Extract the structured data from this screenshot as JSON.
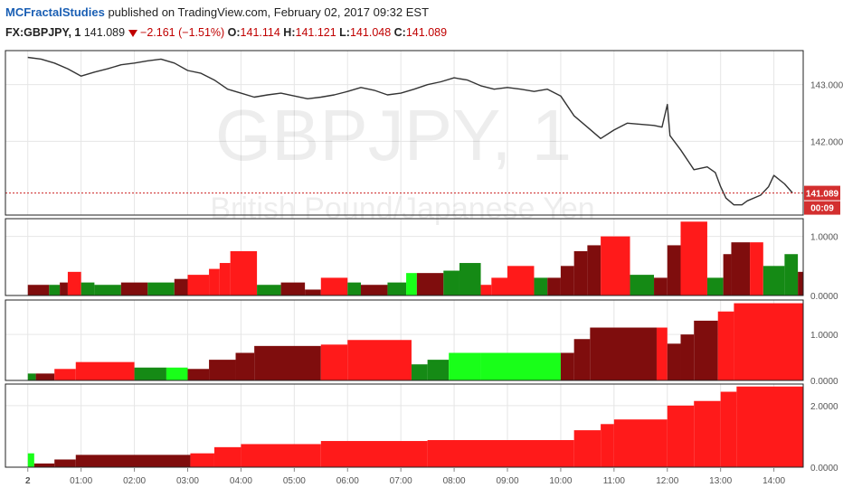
{
  "header": {
    "author": "MCFractalStudies",
    "published_text": "published on TradingView.com, February 02, 2017 09:32 EST",
    "symbol": "FX:GBPJPY, 1",
    "last": "141.089",
    "change": "−2.161 (−1.51%)",
    "o_label": "O:",
    "o_value": "141.114",
    "h_label": "H:",
    "h_value": "141.121",
    "l_label": "L:",
    "l_value": "141.048",
    "c_label": "C:",
    "c_value": "141.089"
  },
  "watermark": {
    "symbol": "GBPJPY, 1",
    "name": "British Pound/Japanese Yen"
  },
  "colors": {
    "red": "#ff1a1a",
    "dark_red": "#7f0d0d",
    "green": "#158a15",
    "light_green": "#19ff19",
    "grid": "#e6e6e6",
    "price_line": "#cc2222",
    "axis_text": "#555555"
  },
  "chart_data": [
    {
      "type": "line",
      "name": "price",
      "x_unit": "hours since midnight (session 2)",
      "x": [
        0,
        0.25,
        0.5,
        0.75,
        1.0,
        1.25,
        1.5,
        1.75,
        2.0,
        2.25,
        2.5,
        2.75,
        3.0,
        3.25,
        3.5,
        3.75,
        4.0,
        4.25,
        4.5,
        4.75,
        5.0,
        5.25,
        5.5,
        5.75,
        6.0,
        6.25,
        6.5,
        6.75,
        7.0,
        7.25,
        7.5,
        7.75,
        8.0,
        8.25,
        8.5,
        8.75,
        9.0,
        9.25,
        9.5,
        9.75,
        10.0,
        10.25,
        10.5,
        10.75,
        11.0,
        11.25,
        11.5,
        11.75,
        11.9,
        12.0,
        12.05,
        12.25,
        12.5,
        12.75,
        12.9,
        13.0,
        13.1,
        13.25,
        13.4,
        13.5,
        13.75,
        13.9,
        14.0,
        14.2,
        14.35
      ],
      "values": [
        143.48,
        143.45,
        143.38,
        143.28,
        143.15,
        143.22,
        143.28,
        143.35,
        143.38,
        143.42,
        143.45,
        143.38,
        143.25,
        143.2,
        143.08,
        142.92,
        142.85,
        142.78,
        142.82,
        142.85,
        142.8,
        142.75,
        142.78,
        142.82,
        142.88,
        142.95,
        142.9,
        142.82,
        142.85,
        142.92,
        143.0,
        143.05,
        143.12,
        143.08,
        142.98,
        142.92,
        142.95,
        142.92,
        142.88,
        142.92,
        142.8,
        142.45,
        142.25,
        142.05,
        142.2,
        142.32,
        142.3,
        142.28,
        142.25,
        142.65,
        142.1,
        141.85,
        141.5,
        141.55,
        141.45,
        141.2,
        141.0,
        140.88,
        140.88,
        140.95,
        141.05,
        141.2,
        141.4,
        141.25,
        141.09
      ],
      "last_value": 141.089,
      "last_label": "141.089",
      "countdown": "00:09",
      "ylim": [
        140.7,
        143.6
      ],
      "yticks": [
        142.0,
        143.0
      ],
      "ytick_labels": [
        "142.000",
        "143.000"
      ]
    },
    {
      "type": "bar",
      "name": "indicator pane 1",
      "ylim": [
        0,
        1.3
      ],
      "yticks": [
        0,
        1
      ],
      "ytick_labels": [
        "0.0000",
        "1.0000"
      ],
      "blocks": [
        {
          "x0": 0,
          "x1": 0.4,
          "v": 0.18,
          "c": "dark_red"
        },
        {
          "x0": 0.4,
          "x1": 0.6,
          "v": 0.18,
          "c": "green"
        },
        {
          "x0": 0.6,
          "x1": 0.75,
          "v": 0.22,
          "c": "dark_red"
        },
        {
          "x0": 0.75,
          "x1": 1.0,
          "v": 0.4,
          "c": "red"
        },
        {
          "x0": 1.0,
          "x1": 1.25,
          "v": 0.22,
          "c": "green"
        },
        {
          "x0": 1.25,
          "x1": 1.75,
          "v": 0.18,
          "c": "green"
        },
        {
          "x0": 1.75,
          "x1": 2.25,
          "v": 0.22,
          "c": "dark_red"
        },
        {
          "x0": 2.25,
          "x1": 2.75,
          "v": 0.22,
          "c": "green"
        },
        {
          "x0": 2.75,
          "x1": 3.0,
          "v": 0.28,
          "c": "dark_red"
        },
        {
          "x0": 3.0,
          "x1": 3.4,
          "v": 0.35,
          "c": "red"
        },
        {
          "x0": 3.4,
          "x1": 3.6,
          "v": 0.45,
          "c": "red"
        },
        {
          "x0": 3.6,
          "x1": 3.8,
          "v": 0.55,
          "c": "red"
        },
        {
          "x0": 3.8,
          "x1": 4.3,
          "v": 0.75,
          "c": "red"
        },
        {
          "x0": 4.3,
          "x1": 4.75,
          "v": 0.18,
          "c": "green"
        },
        {
          "x0": 4.75,
          "x1": 5.2,
          "v": 0.22,
          "c": "dark_red"
        },
        {
          "x0": 5.2,
          "x1": 5.5,
          "v": 0.1,
          "c": "dark_red"
        },
        {
          "x0": 5.5,
          "x1": 6.0,
          "v": 0.3,
          "c": "red"
        },
        {
          "x0": 6.0,
          "x1": 6.25,
          "v": 0.22,
          "c": "green"
        },
        {
          "x0": 6.25,
          "x1": 6.75,
          "v": 0.18,
          "c": "dark_red"
        },
        {
          "x0": 6.75,
          "x1": 7.1,
          "v": 0.22,
          "c": "green"
        },
        {
          "x0": 7.1,
          "x1": 7.3,
          "v": 0.38,
          "c": "light_green"
        },
        {
          "x0": 7.3,
          "x1": 7.8,
          "v": 0.38,
          "c": "dark_red"
        },
        {
          "x0": 7.8,
          "x1": 8.1,
          "v": 0.42,
          "c": "green"
        },
        {
          "x0": 8.1,
          "x1": 8.5,
          "v": 0.55,
          "c": "green"
        },
        {
          "x0": 8.5,
          "x1": 8.7,
          "v": 0.18,
          "c": "red"
        },
        {
          "x0": 8.7,
          "x1": 9.0,
          "v": 0.3,
          "c": "red"
        },
        {
          "x0": 9.0,
          "x1": 9.5,
          "v": 0.5,
          "c": "red"
        },
        {
          "x0": 9.5,
          "x1": 9.75,
          "v": 0.3,
          "c": "green"
        },
        {
          "x0": 9.75,
          "x1": 10.0,
          "v": 0.3,
          "c": "dark_red"
        },
        {
          "x0": 10.0,
          "x1": 10.25,
          "v": 0.5,
          "c": "dark_red"
        },
        {
          "x0": 10.25,
          "x1": 10.5,
          "v": 0.75,
          "c": "dark_red"
        },
        {
          "x0": 10.5,
          "x1": 10.75,
          "v": 0.85,
          "c": "dark_red"
        },
        {
          "x0": 10.75,
          "x1": 11.3,
          "v": 1.0,
          "c": "red"
        },
        {
          "x0": 11.3,
          "x1": 11.75,
          "v": 0.35,
          "c": "green"
        },
        {
          "x0": 11.75,
          "x1": 12.0,
          "v": 0.3,
          "c": "dark_red"
        },
        {
          "x0": 12.0,
          "x1": 12.25,
          "v": 0.85,
          "c": "dark_red"
        },
        {
          "x0": 12.25,
          "x1": 12.75,
          "v": 1.25,
          "c": "red"
        },
        {
          "x0": 12.75,
          "x1": 13.05,
          "v": 0.3,
          "c": "green"
        },
        {
          "x0": 13.05,
          "x1": 13.2,
          "v": 0.7,
          "c": "dark_red"
        },
        {
          "x0": 13.2,
          "x1": 13.55,
          "v": 0.9,
          "c": "dark_red"
        },
        {
          "x0": 13.55,
          "x1": 13.8,
          "v": 0.9,
          "c": "red"
        },
        {
          "x0": 13.8,
          "x1": 14.2,
          "v": 0.5,
          "c": "green"
        },
        {
          "x0": 14.2,
          "x1": 14.45,
          "v": 0.7,
          "c": "green"
        },
        {
          "x0": 14.45,
          "x1": 14.55,
          "v": 0.4,
          "c": "dark_red"
        }
      ]
    },
    {
      "type": "bar",
      "name": "indicator pane 2",
      "ylim": [
        0,
        1.75
      ],
      "yticks": [
        0,
        1
      ],
      "ytick_labels": [
        "0.0000",
        "1.0000"
      ],
      "blocks": [
        {
          "x0": 0,
          "x1": 0.15,
          "v": 0.15,
          "c": "green"
        },
        {
          "x0": 0.15,
          "x1": 0.5,
          "v": 0.15,
          "c": "dark_red"
        },
        {
          "x0": 0.5,
          "x1": 0.9,
          "v": 0.25,
          "c": "red"
        },
        {
          "x0": 0.9,
          "x1": 2.0,
          "v": 0.4,
          "c": "red"
        },
        {
          "x0": 2.0,
          "x1": 2.6,
          "v": 0.28,
          "c": "green"
        },
        {
          "x0": 2.6,
          "x1": 3.0,
          "v": 0.28,
          "c": "light_green"
        },
        {
          "x0": 3.0,
          "x1": 3.4,
          "v": 0.25,
          "c": "dark_red"
        },
        {
          "x0": 3.4,
          "x1": 3.9,
          "v": 0.45,
          "c": "dark_red"
        },
        {
          "x0": 3.9,
          "x1": 4.25,
          "v": 0.6,
          "c": "dark_red"
        },
        {
          "x0": 4.25,
          "x1": 5.5,
          "v": 0.75,
          "c": "dark_red"
        },
        {
          "x0": 5.5,
          "x1": 6.0,
          "v": 0.78,
          "c": "red"
        },
        {
          "x0": 6.0,
          "x1": 7.2,
          "v": 0.88,
          "c": "red"
        },
        {
          "x0": 7.2,
          "x1": 7.5,
          "v": 0.35,
          "c": "green"
        },
        {
          "x0": 7.5,
          "x1": 7.9,
          "v": 0.45,
          "c": "green"
        },
        {
          "x0": 7.9,
          "x1": 8.5,
          "v": 0.6,
          "c": "light_green"
        },
        {
          "x0": 8.5,
          "x1": 10.0,
          "v": 0.6,
          "c": "light_green"
        },
        {
          "x0": 10.0,
          "x1": 10.25,
          "v": 0.6,
          "c": "dark_red"
        },
        {
          "x0": 10.25,
          "x1": 10.55,
          "v": 0.9,
          "c": "dark_red"
        },
        {
          "x0": 10.55,
          "x1": 11.8,
          "v": 1.15,
          "c": "dark_red"
        },
        {
          "x0": 11.8,
          "x1": 12.0,
          "v": 1.15,
          "c": "red"
        },
        {
          "x0": 12.0,
          "x1": 12.25,
          "v": 0.8,
          "c": "dark_red"
        },
        {
          "x0": 12.25,
          "x1": 12.5,
          "v": 1.0,
          "c": "dark_red"
        },
        {
          "x0": 12.5,
          "x1": 12.95,
          "v": 1.3,
          "c": "dark_red"
        },
        {
          "x0": 12.95,
          "x1": 13.25,
          "v": 1.5,
          "c": "red"
        },
        {
          "x0": 13.25,
          "x1": 14.55,
          "v": 1.68,
          "c": "red"
        }
      ]
    },
    {
      "type": "bar",
      "name": "indicator pane 3",
      "ylim": [
        0,
        2.7
      ],
      "yticks": [
        0,
        2
      ],
      "ytick_labels": [
        "0.0000",
        "2.0000"
      ],
      "blocks": [
        {
          "x0": 0,
          "x1": 0.12,
          "v": 0.45,
          "c": "light_green"
        },
        {
          "x0": 0.12,
          "x1": 0.5,
          "v": 0.12,
          "c": "dark_red"
        },
        {
          "x0": 0.5,
          "x1": 0.9,
          "v": 0.25,
          "c": "dark_red"
        },
        {
          "x0": 0.9,
          "x1": 3.05,
          "v": 0.4,
          "c": "dark_red"
        },
        {
          "x0": 3.05,
          "x1": 3.5,
          "v": 0.45,
          "c": "red"
        },
        {
          "x0": 3.5,
          "x1": 4.0,
          "v": 0.65,
          "c": "red"
        },
        {
          "x0": 4.0,
          "x1": 5.5,
          "v": 0.75,
          "c": "red"
        },
        {
          "x0": 5.5,
          "x1": 7.5,
          "v": 0.85,
          "c": "red"
        },
        {
          "x0": 7.5,
          "x1": 10.25,
          "v": 0.88,
          "c": "red"
        },
        {
          "x0": 10.25,
          "x1": 10.75,
          "v": 1.2,
          "c": "red"
        },
        {
          "x0": 10.75,
          "x1": 11.0,
          "v": 1.4,
          "c": "red"
        },
        {
          "x0": 11.0,
          "x1": 12.0,
          "v": 1.55,
          "c": "red"
        },
        {
          "x0": 12.0,
          "x1": 12.5,
          "v": 2.0,
          "c": "red"
        },
        {
          "x0": 12.5,
          "x1": 13.0,
          "v": 2.15,
          "c": "red"
        },
        {
          "x0": 13.0,
          "x1": 13.3,
          "v": 2.45,
          "c": "red"
        },
        {
          "x0": 13.3,
          "x1": 14.55,
          "v": 2.62,
          "c": "red"
        }
      ]
    }
  ],
  "x_axis": {
    "ticks": [
      0,
      1,
      2,
      3,
      4,
      5,
      6,
      7,
      8,
      9,
      10,
      11,
      12,
      13,
      14
    ],
    "labels": [
      "2",
      "01:00",
      "02:00",
      "03:00",
      "04:00",
      "05:00",
      "06:00",
      "07:00",
      "08:00",
      "09:00",
      "10:00",
      "11:00",
      "12:00",
      "13:00",
      "14:00"
    ],
    "xlim": [
      -0.42,
      14.55
    ]
  }
}
